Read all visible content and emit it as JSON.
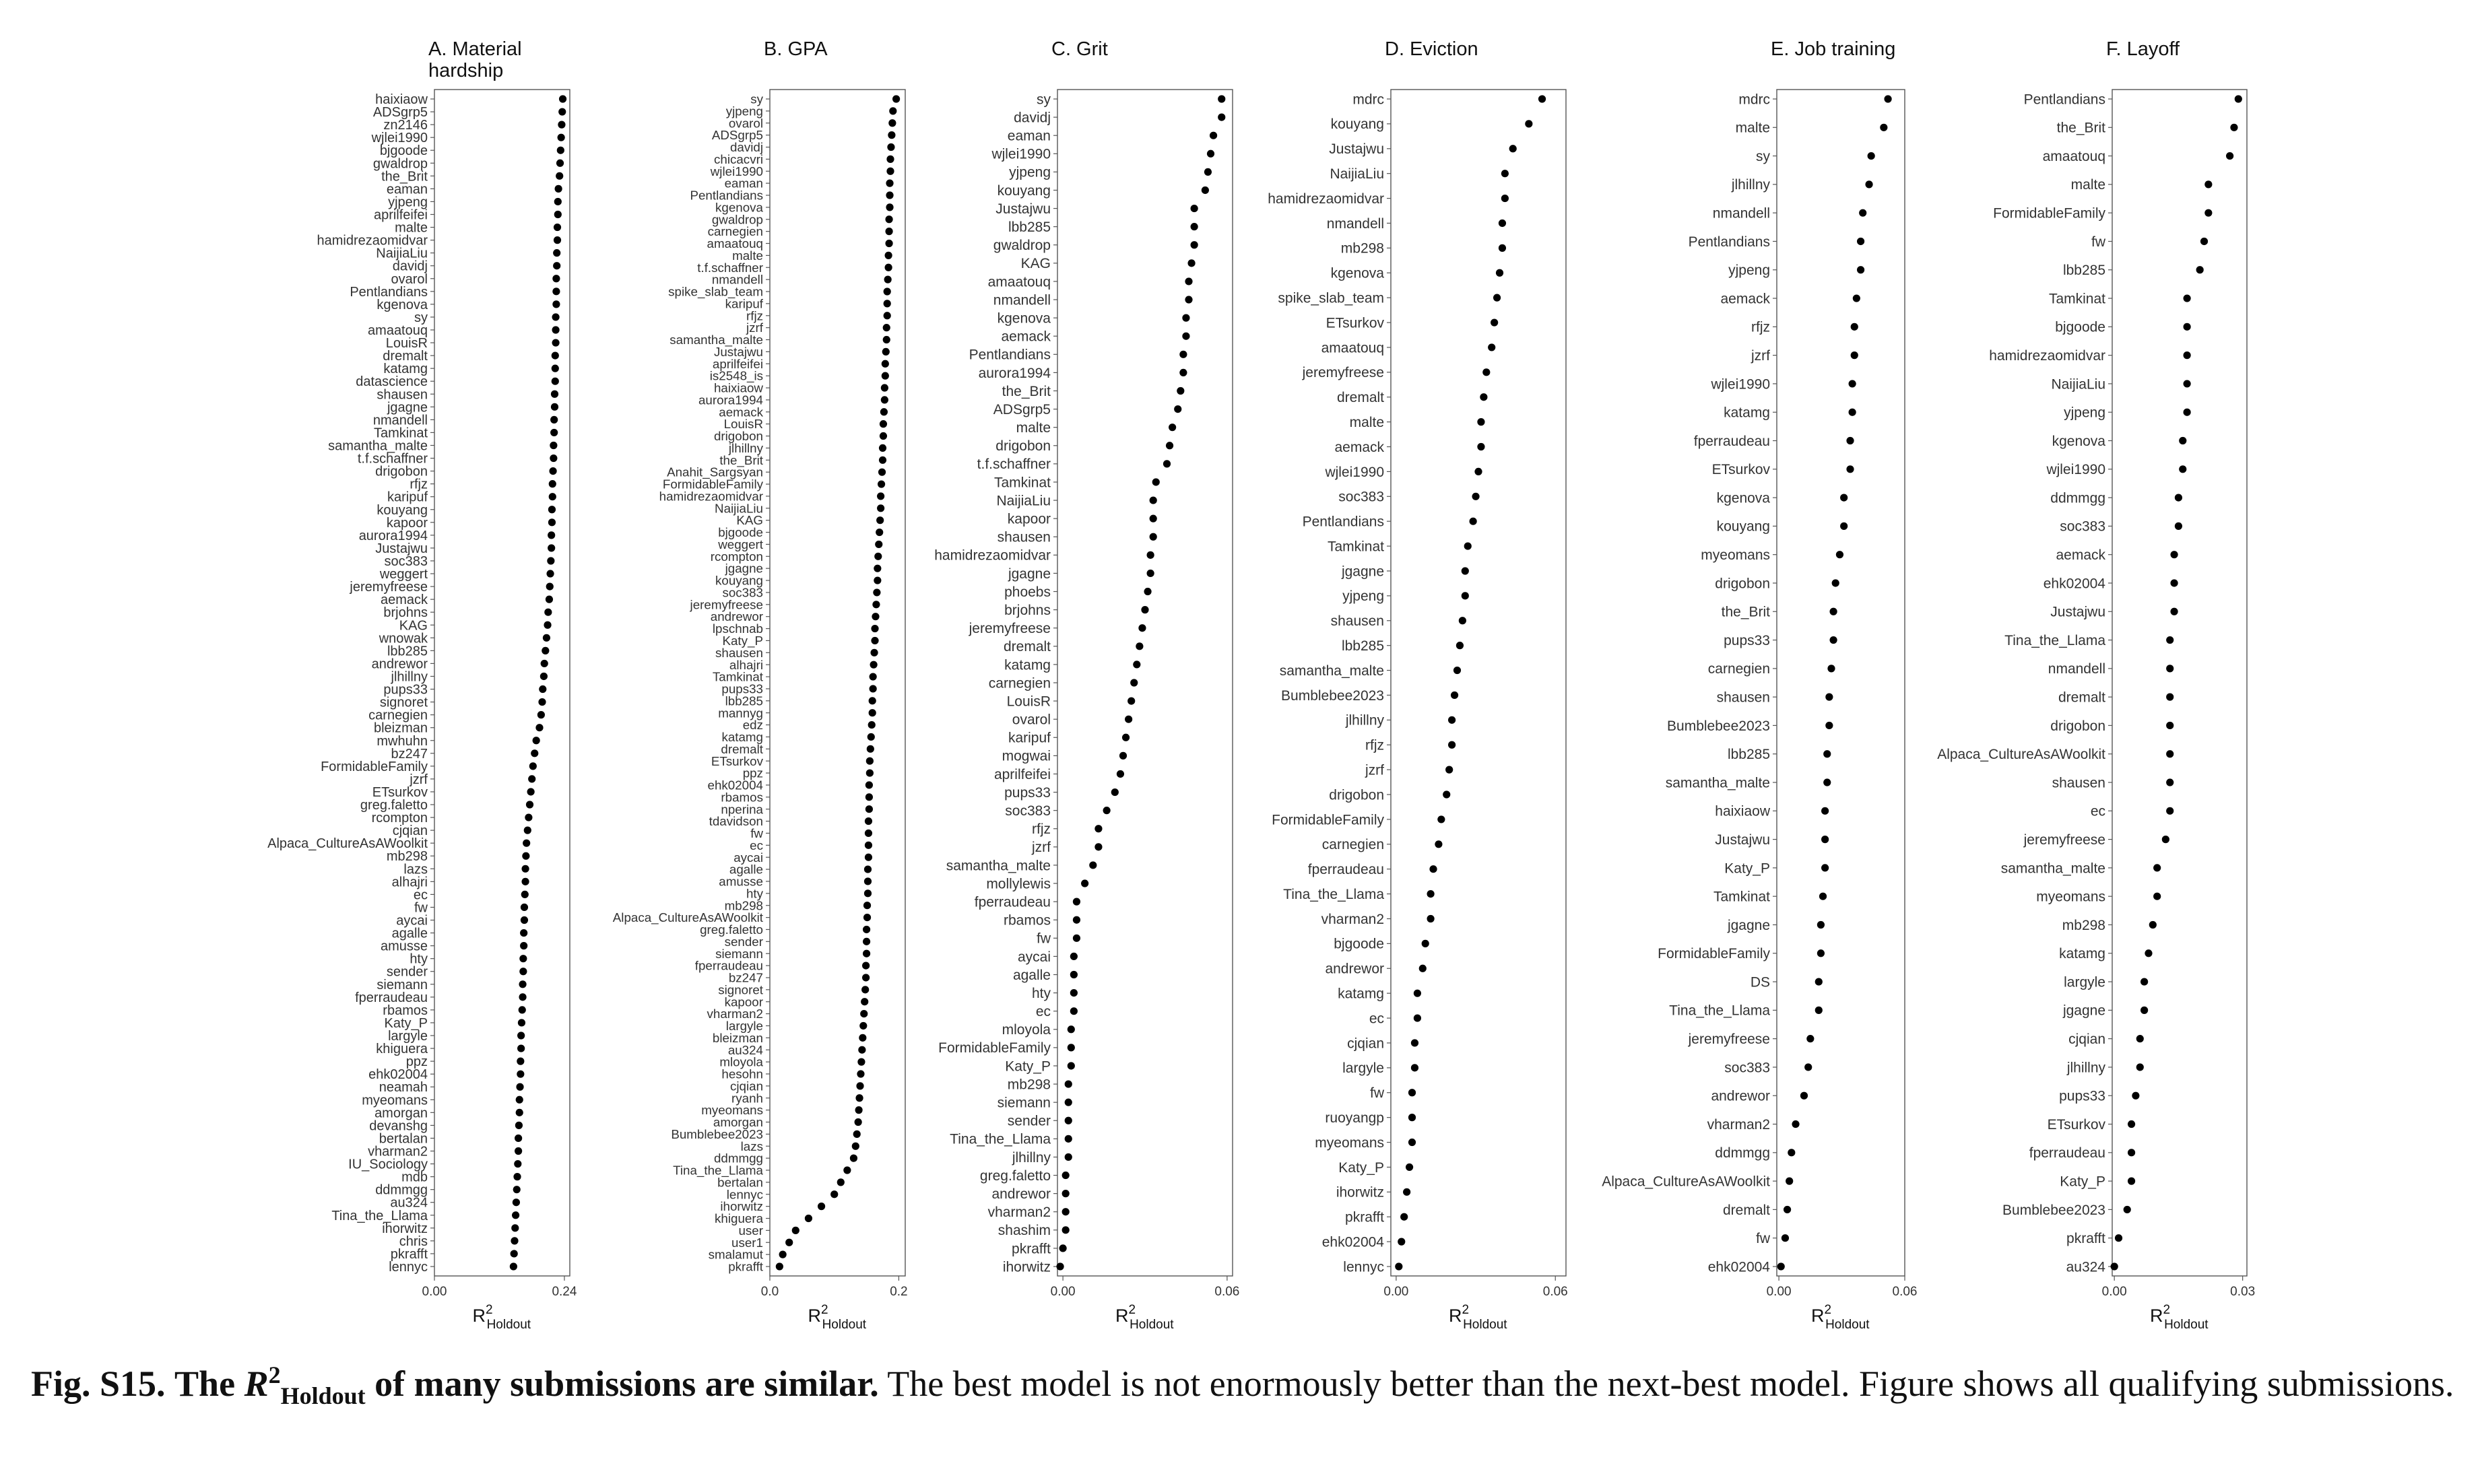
{
  "caption": {
    "fig_label": "Fig. S15.",
    "title_pre": "The",
    "r_symbol": "R",
    "r_sup": "2",
    "r_sub": "Holdout",
    "title_post": "of many submissions are similar.",
    "body": "The best model is not enormously better than the next-best model. Figure shows all qualifying submissions."
  },
  "chart_data": [
    {
      "type": "scatter",
      "title": "A. Material hardship",
      "title_lines": [
        "A. Material",
        "hardship"
      ],
      "xlabel": "R2Holdout",
      "xlabel_main": "R",
      "xlabel_sup": "2",
      "xlabel_sub": "Holdout",
      "xlim": [
        0.0,
        0.25
      ],
      "xticks": [
        0.0,
        0.24
      ],
      "xtick_labels": [
        "0.00",
        "0.24"
      ],
      "categories": [
        "haixiaow",
        "ADSgrp5",
        "zn2146",
        "wjlei1990",
        "bjgoode",
        "gwaldrop",
        "the_Brit",
        "eaman",
        "yjpeng",
        "aprilfeifei",
        "malte",
        "hamidrezaomidvar",
        "NaijiaLiu",
        "davidj",
        "ovarol",
        "Pentlandians",
        "kgenova",
        "sy",
        "amaatouq",
        "LouisR",
        "dremalt",
        "katamg",
        "datascience",
        "shausen",
        "jgagne",
        "nmandell",
        "Tamkinat",
        "samantha_malte",
        "t.f.schaffner",
        "drigobon",
        "rfjz",
        "karipuf",
        "kouyang",
        "kapoor",
        "aurora1994",
        "Justajwu",
        "soc383",
        "weggert",
        "jeremyfreese",
        "aemack",
        "brjohns",
        "KAG",
        "wnowak",
        "lbb285",
        "andrewor",
        "jlhillny",
        "pups33",
        "signoret",
        "carnegien",
        "bleizman",
        "mwhuhn",
        "bz247",
        "FormidableFamily",
        "jzrf",
        "ETsurkov",
        "greg.faletto",
        "rcompton",
        "cjqian",
        "Alpaca_CultureAsAWoolkit",
        "mb298",
        "lazs",
        "alhajri",
        "ec",
        "fw",
        "aycai",
        "agalle",
        "amusse",
        "hty",
        "sender",
        "siemann",
        "fperraudeau",
        "rbamos",
        "Katy_P",
        "largyle",
        "khiguera",
        "ppz",
        "ehk02004",
        "neamah",
        "myeomans",
        "amorgan",
        "devanshg",
        "bertalan",
        "vharman2",
        "IU_Sociology",
        "mdb",
        "ddmmgg",
        "au324",
        "Tina_the_Llama",
        "ihorwitz",
        "chris",
        "pkrafft",
        "lennyc"
      ],
      "values": [
        0.237,
        0.236,
        0.235,
        0.234,
        0.233,
        0.232,
        0.231,
        0.229,
        0.228,
        0.228,
        0.227,
        0.227,
        0.226,
        0.226,
        0.225,
        0.225,
        0.225,
        0.224,
        0.224,
        0.224,
        0.223,
        0.223,
        0.223,
        0.222,
        0.222,
        0.221,
        0.221,
        0.22,
        0.22,
        0.219,
        0.218,
        0.218,
        0.217,
        0.217,
        0.216,
        0.216,
        0.215,
        0.214,
        0.213,
        0.212,
        0.21,
        0.209,
        0.207,
        0.205,
        0.203,
        0.202,
        0.2,
        0.199,
        0.197,
        0.194,
        0.188,
        0.185,
        0.182,
        0.18,
        0.178,
        0.176,
        0.174,
        0.172,
        0.17,
        0.169,
        0.168,
        0.168,
        0.167,
        0.166,
        0.166,
        0.165,
        0.165,
        0.164,
        0.164,
        0.163,
        0.163,
        0.162,
        0.161,
        0.16,
        0.16,
        0.159,
        0.159,
        0.158,
        0.157,
        0.157,
        0.156,
        0.155,
        0.155,
        0.154,
        0.153,
        0.152,
        0.151,
        0.15,
        0.149,
        0.148,
        0.147,
        0.146
      ]
    },
    {
      "type": "scatter",
      "title": "B. GPA",
      "title_lines": [
        "B. GPA"
      ],
      "xlabel": "R2Holdout",
      "xlabel_main": "R",
      "xlabel_sup": "2",
      "xlabel_sub": "Holdout",
      "xlim": [
        0.0,
        0.21
      ],
      "xticks": [
        0.0,
        0.2
      ],
      "xtick_labels": [
        "0.0",
        "0.2"
      ],
      "categories": [
        "sy",
        "yjpeng",
        "ovarol",
        "ADSgrp5",
        "davidj",
        "chicacvri",
        "wjlei1990",
        "eaman",
        "Pentlandians",
        "kgenova",
        "gwaldrop",
        "carnegien",
        "amaatouq",
        "malte",
        "t.f.schaffner",
        "nmandell",
        "spike_slab_team",
        "karipuf",
        "rfjz",
        "jzrf",
        "samantha_malte",
        "Justajwu",
        "aprilfeifei",
        "is2548_is",
        "haixiaow",
        "aurora1994",
        "aemack",
        "LouisR",
        "drigobon",
        "jlhillny",
        "the_Brit",
        "Anahit_Sargsyan",
        "FormidableFamily",
        "hamidrezaomidvar",
        "NaijiaLiu",
        "KAG",
        "bjgoode",
        "weggert",
        "rcompton",
        "jgagne",
        "kouyang",
        "soc383",
        "jeremyfreese",
        "andrewor",
        "lpschnab",
        "Katy_P",
        "shausen",
        "alhajri",
        "Tamkinat",
        "pups33",
        "lbb285",
        "mannyg",
        "edz",
        "katamg",
        "dremalt",
        "ETsurkov",
        "ppz",
        "ehk02004",
        "rbamos",
        "nperina",
        "tdavidson",
        "fw",
        "ec",
        "aycai",
        "agalle",
        "amusse",
        "hty",
        "mb298",
        "Alpaca_CultureAsAWoolkit",
        "greg.faletto",
        "sender",
        "siemann",
        "fperraudeau",
        "bz247",
        "signoret",
        "kapoor",
        "vharman2",
        "largyle",
        "bleizman",
        "au324",
        "mloyola",
        "hesohn",
        "cjqian",
        "ryanh",
        "myeomans",
        "amorgan",
        "Bumblebee2023",
        "lazs",
        "ddmmgg",
        "Tina_the_Llama",
        "bertalan",
        "lennyc",
        "ihorwitz",
        "khiguera",
        "user",
        "user1",
        "smalamut",
        "pkrafft"
      ],
      "values": [
        0.196,
        0.191,
        0.19,
        0.189,
        0.188,
        0.187,
        0.187,
        0.186,
        0.186,
        0.186,
        0.185,
        0.185,
        0.185,
        0.184,
        0.184,
        0.183,
        0.182,
        0.182,
        0.182,
        0.181,
        0.181,
        0.18,
        0.179,
        0.179,
        0.178,
        0.178,
        0.177,
        0.176,
        0.176,
        0.175,
        0.175,
        0.174,
        0.173,
        0.172,
        0.172,
        0.171,
        0.17,
        0.169,
        0.168,
        0.167,
        0.167,
        0.166,
        0.165,
        0.164,
        0.163,
        0.163,
        0.162,
        0.161,
        0.16,
        0.16,
        0.159,
        0.159,
        0.158,
        0.157,
        0.156,
        0.155,
        0.155,
        0.154,
        0.154,
        0.154,
        0.153,
        0.153,
        0.153,
        0.153,
        0.152,
        0.152,
        0.152,
        0.151,
        0.151,
        0.15,
        0.15,
        0.15,
        0.149,
        0.149,
        0.148,
        0.147,
        0.146,
        0.145,
        0.144,
        0.143,
        0.142,
        0.141,
        0.14,
        0.139,
        0.138,
        0.137,
        0.135,
        0.133,
        0.13,
        0.12,
        0.11,
        0.1,
        0.08,
        0.06,
        0.04,
        0.03,
        0.02,
        0.015
      ]
    },
    {
      "type": "scatter",
      "title": "C. Grit",
      "title_lines": [
        "C. Grit"
      ],
      "xlabel": "R2Holdout",
      "xlabel_main": "R",
      "xlabel_sup": "2",
      "xlabel_sub": "Holdout",
      "xlim": [
        -0.002,
        0.062
      ],
      "xticks": [
        0.0,
        0.06
      ],
      "xtick_labels": [
        "0.00",
        "0.06"
      ],
      "categories": [
        "sy",
        "davidj",
        "eaman",
        "wjlei1990",
        "yjpeng",
        "kouyang",
        "Justajwu",
        "lbb285",
        "gwaldrop",
        "KAG",
        "amaatouq",
        "nmandell",
        "kgenova",
        "aemack",
        "Pentlandians",
        "aurora1994",
        "the_Brit",
        "ADSgrp5",
        "malte",
        "drigobon",
        "t.f.schaffner",
        "Tamkinat",
        "NaijiaLiu",
        "kapoor",
        "shausen",
        "hamidrezaomidvar",
        "jgagne",
        "phoebs",
        "brjohns",
        "jeremyfreese",
        "dremalt",
        "katamg",
        "carnegien",
        "LouisR",
        "ovarol",
        "karipuf",
        "mogwai",
        "aprilfeifei",
        "pups33",
        "soc383",
        "rfjz",
        "jzrf",
        "samantha_malte",
        "mollylewis",
        "fperraudeau",
        "rbamos",
        "fw",
        "aycai",
        "agalle",
        "hty",
        "ec",
        "mloyola",
        "FormidableFamily",
        "Katy_P",
        "mb298",
        "siemann",
        "sender",
        "Tina_the_Llama",
        "jlhillny",
        "greg.faletto",
        "andrewor",
        "vharman2",
        "shashim",
        "pkrafft",
        "ihorwitz"
      ],
      "values": [
        0.058,
        0.058,
        0.055,
        0.054,
        0.053,
        0.052,
        0.048,
        0.048,
        0.048,
        0.047,
        0.046,
        0.046,
        0.045,
        0.045,
        0.044,
        0.044,
        0.043,
        0.042,
        0.04,
        0.039,
        0.038,
        0.034,
        0.033,
        0.033,
        0.033,
        0.032,
        0.032,
        0.031,
        0.03,
        0.029,
        0.028,
        0.027,
        0.026,
        0.025,
        0.024,
        0.023,
        0.022,
        0.021,
        0.019,
        0.016,
        0.013,
        0.013,
        0.011,
        0.008,
        0.005,
        0.005,
        0.005,
        0.004,
        0.004,
        0.004,
        0.004,
        0.003,
        0.003,
        0.003,
        0.002,
        0.002,
        0.002,
        0.002,
        0.002,
        0.001,
        0.001,
        0.001,
        0.001,
        0.0,
        -0.001
      ]
    },
    {
      "type": "scatter",
      "title": "D. Eviction",
      "title_lines": [
        "D. Eviction"
      ],
      "xlabel": "R2Holdout",
      "xlabel_main": "R",
      "xlabel_sup": "2",
      "xlabel_sub": "Holdout",
      "xlim": [
        -0.002,
        0.064
      ],
      "xticks": [
        0.0,
        0.06
      ],
      "xtick_labels": [
        "0.00",
        "0.06"
      ],
      "categories": [
        "mdrc",
        "kouyang",
        "Justajwu",
        "NaijiaLiu",
        "hamidrezaomidvar",
        "nmandell",
        "mb298",
        "kgenova",
        "spike_slab_team",
        "ETsurkov",
        "amaatouq",
        "jeremyfreese",
        "dremalt",
        "malte",
        "aemack",
        "wjlei1990",
        "soc383",
        "Pentlandians",
        "Tamkinat",
        "jgagne",
        "yjpeng",
        "shausen",
        "lbb285",
        "samantha_malte",
        "Bumblebee2023",
        "jlhillny",
        "rfjz",
        "jzrf",
        "drigobon",
        "FormidableFamily",
        "carnegien",
        "fperraudeau",
        "Tina_the_Llama",
        "vharman2",
        "bjgoode",
        "andrewor",
        "katamg",
        "ec",
        "cjqian",
        "largyle",
        "fw",
        "ruoyangp",
        "myeomans",
        "Katy_P",
        "ihorwitz",
        "pkrafft",
        "ehk02004",
        "lennyc"
      ],
      "values": [
        0.055,
        0.05,
        0.044,
        0.041,
        0.041,
        0.04,
        0.04,
        0.039,
        0.038,
        0.037,
        0.036,
        0.034,
        0.033,
        0.032,
        0.032,
        0.031,
        0.03,
        0.029,
        0.027,
        0.026,
        0.026,
        0.025,
        0.024,
        0.023,
        0.022,
        0.021,
        0.021,
        0.02,
        0.019,
        0.017,
        0.016,
        0.014,
        0.013,
        0.013,
        0.011,
        0.01,
        0.008,
        0.008,
        0.007,
        0.007,
        0.006,
        0.006,
        0.006,
        0.005,
        0.004,
        0.003,
        0.002,
        0.001
      ]
    },
    {
      "type": "scatter",
      "title": "E. Job training",
      "title_lines": [
        "E. Job training"
      ],
      "xlabel": "R2Holdout",
      "xlabel_main": "R",
      "xlabel_sup": "2",
      "xlabel_sub": "Holdout",
      "xlim": [
        -0.001,
        0.06
      ],
      "xticks": [
        0.0,
        0.06
      ],
      "xtick_labels": [
        "0.00",
        "0.06"
      ],
      "categories": [
        "mdrc",
        "malte",
        "sy",
        "jlhillny",
        "nmandell",
        "Pentlandians",
        "yjpeng",
        "aemack",
        "rfjz",
        "jzrf",
        "wjlei1990",
        "katamg",
        "fperraudeau",
        "ETsurkov",
        "kgenova",
        "kouyang",
        "myeomans",
        "drigobon",
        "the_Brit",
        "pups33",
        "carnegien",
        "shausen",
        "Bumblebee2023",
        "lbb285",
        "samantha_malte",
        "haixiaow",
        "Justajwu",
        "Katy_P",
        "Tamkinat",
        "jgagne",
        "FormidableFamily",
        "DS",
        "Tina_the_Llama",
        "jeremyfreese",
        "soc383",
        "andrewor",
        "vharman2",
        "ddmmgg",
        "Alpaca_CultureAsAWoolkit",
        "dremalt",
        "fw",
        "ehk02004"
      ],
      "values": [
        0.052,
        0.05,
        0.044,
        0.043,
        0.04,
        0.039,
        0.039,
        0.037,
        0.036,
        0.036,
        0.035,
        0.035,
        0.034,
        0.034,
        0.031,
        0.031,
        0.029,
        0.027,
        0.026,
        0.026,
        0.025,
        0.024,
        0.024,
        0.023,
        0.023,
        0.022,
        0.022,
        0.022,
        0.021,
        0.02,
        0.02,
        0.019,
        0.019,
        0.015,
        0.014,
        0.012,
        0.008,
        0.006,
        0.005,
        0.004,
        0.003,
        0.001
      ]
    },
    {
      "type": "scatter",
      "title": "F. Layoff",
      "title_lines": [
        "F. Layoff"
      ],
      "xlabel": "R2Holdout",
      "xlabel_main": "R",
      "xlabel_sup": "2",
      "xlabel_sub": "Holdout",
      "xlim": [
        -0.0005,
        0.031
      ],
      "xticks": [
        0.0,
        0.03
      ],
      "xtick_labels": [
        "0.00",
        "0.03"
      ],
      "categories": [
        "Pentlandians",
        "the_Brit",
        "amaatouq",
        "malte",
        "FormidableFamily",
        "fw",
        "lbb285",
        "Tamkinat",
        "bjgoode",
        "hamidrezaomidvar",
        "NaijiaLiu",
        "yjpeng",
        "kgenova",
        "wjlei1990",
        "ddmmgg",
        "soc383",
        "aemack",
        "ehk02004",
        "Justajwu",
        "Tina_the_Llama",
        "nmandell",
        "dremalt",
        "drigobon",
        "Alpaca_CultureAsAWoolkit",
        "shausen",
        "ec",
        "jeremyfreese",
        "samantha_malte",
        "myeomans",
        "mb298",
        "katamg",
        "largyle",
        "jgagne",
        "cjqian",
        "jlhillny",
        "pups33",
        "ETsurkov",
        "fperraudeau",
        "Katy_P",
        "Bumblebee2023",
        "pkrafft",
        "au324"
      ],
      "values": [
        0.029,
        0.028,
        0.027,
        0.022,
        0.022,
        0.021,
        0.02,
        0.017,
        0.017,
        0.017,
        0.017,
        0.017,
        0.016,
        0.016,
        0.015,
        0.015,
        0.014,
        0.014,
        0.014,
        0.013,
        0.013,
        0.013,
        0.013,
        0.013,
        0.013,
        0.013,
        0.012,
        0.01,
        0.01,
        0.009,
        0.008,
        0.007,
        0.007,
        0.006,
        0.006,
        0.005,
        0.004,
        0.004,
        0.004,
        0.003,
        0.001,
        0.0
      ]
    }
  ]
}
